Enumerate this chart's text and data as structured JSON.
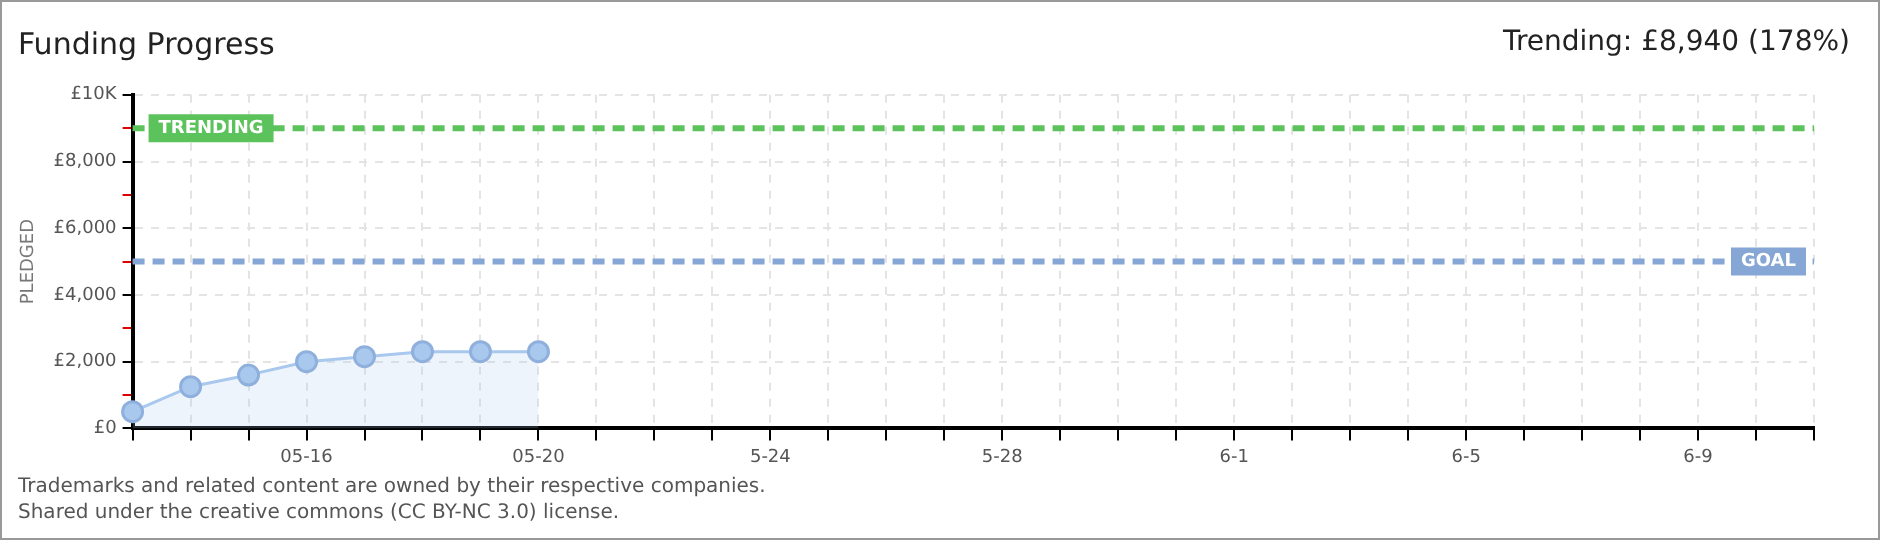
{
  "chart_data": {
    "type": "area",
    "title": "Funding Progress",
    "subtitle": "Trending: £8,940 (178%)",
    "ylabel": "PLEDGED",
    "categories": [
      null,
      null,
      null,
      "05-16",
      null,
      null,
      null,
      "05-20",
      null,
      null,
      null,
      "5-24",
      null,
      null,
      null,
      "5-28",
      null,
      null,
      null,
      "6-1",
      null,
      null,
      null,
      "6-5",
      null,
      null,
      null,
      "6-9",
      null,
      null
    ],
    "series": [
      {
        "color": "#a9c8ee",
        "values": [
          500,
          1250,
          1600,
          2000,
          2150,
          2300,
          2300,
          2300,
          null,
          null,
          null,
          null,
          null,
          null,
          null,
          null,
          null,
          null,
          null,
          null,
          null,
          null,
          null,
          null,
          null,
          null,
          null,
          null,
          null,
          null
        ]
      }
    ],
    "ylim": [
      0,
      10000
    ],
    "yticks": [
      {
        "value": 0,
        "label": "£0"
      },
      {
        "value": 1000,
        "label": null
      },
      {
        "value": 2000,
        "label": "£2,000"
      },
      {
        "value": 3000,
        "label": null
      },
      {
        "value": 4000,
        "label": "£4,000"
      },
      {
        "value": 5000,
        "label": null
      },
      {
        "value": 6000,
        "label": "£6,000"
      },
      {
        "value": 7000,
        "label": null
      },
      {
        "value": 8000,
        "label": "£8,000"
      },
      {
        "value": 9000,
        "label": null
      },
      {
        "value": 10000,
        "label": "£10K"
      }
    ],
    "ref_lines": [
      {
        "axis": "y",
        "value": 9000,
        "label": "TRENDING",
        "color": "#5cc35c",
        "line_style": "dashed"
      },
      {
        "axis": "y",
        "value": 5000,
        "label": "GOAL",
        "color": "#86a6d6",
        "line_style": "dashed"
      }
    ],
    "marker": "circle",
    "grid": true,
    "legend": false,
    "annotations": [
      "Trademarks and related content are owned by their respective companies.",
      "Shared under the creative commons (CC BY-NC 3.0) license."
    ]
  }
}
